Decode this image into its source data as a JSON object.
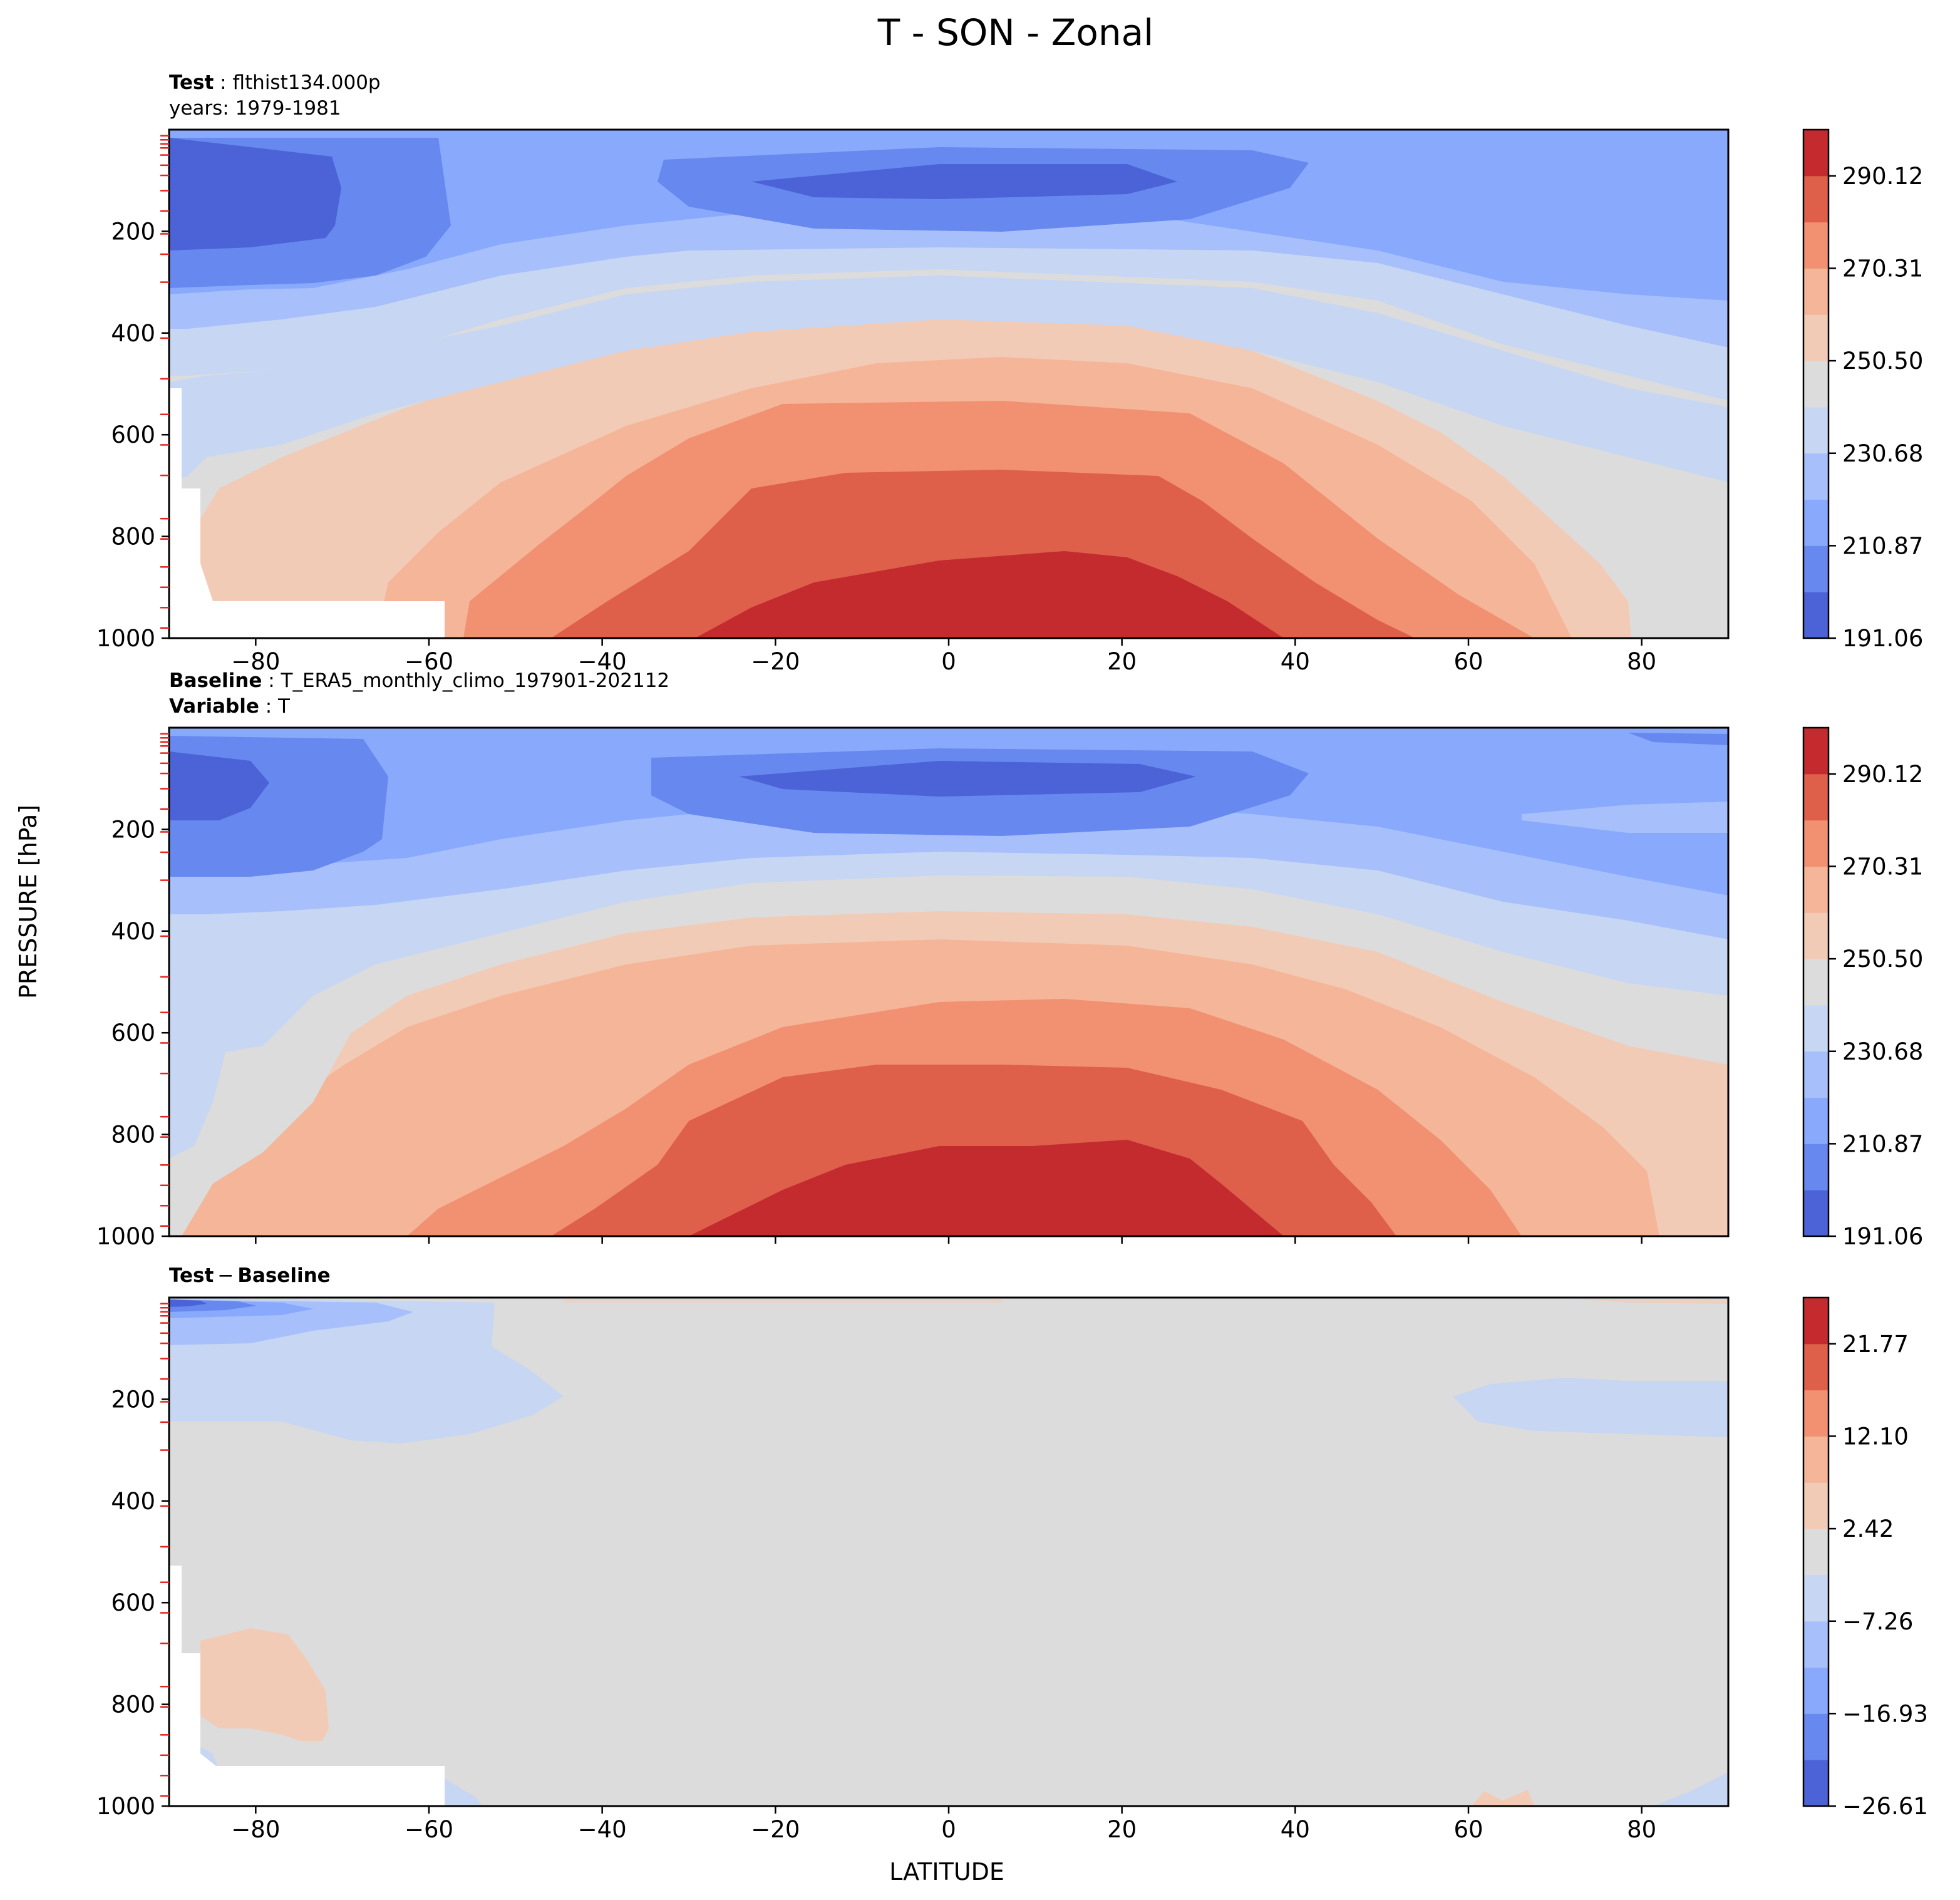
{
  "figure": {
    "title": "T - SON - Zonal",
    "ylabel": "PRESSURE [hPa]",
    "xlabel": "LATITUDE"
  },
  "panels": {
    "test": {
      "header_bold": "Test",
      "header_text": "flthist134.000p",
      "header_line2": "years: 1979-1981"
    },
    "baseline": {
      "header_bold": "Baseline",
      "header_text": "T_ERA5_monthly_climo_197901-202112",
      "header2_bold": "Variable",
      "header2_text": "T"
    },
    "diff": {
      "header_bold1": "Test",
      "header_minus": "−",
      "header_bold2": "Baseline"
    }
  },
  "chart_data": [
    {
      "type": "contourf",
      "panel": "test",
      "title": "Test : flthist134.000p",
      "subtitle": "years: 1979-1981",
      "x_ticks": [
        -80,
        -60,
        -40,
        -20,
        0,
        20,
        40,
        60,
        80
      ],
      "x_tick_labels": [
        "−80",
        "−60",
        "−40",
        "−20",
        "0",
        "20",
        "40",
        "60",
        "80"
      ],
      "y_ticks": [
        200,
        400,
        600,
        800,
        1000
      ],
      "y_tick_labels": [
        "200",
        "400",
        "600",
        "800",
        "1000"
      ],
      "xlim": [
        -90,
        90
      ],
      "ylim": [
        1000,
        0
      ],
      "colormap": "coolwarm",
      "colorbar_ticks": [
        "290.12",
        "270.31",
        "250.50",
        "230.68",
        "210.87",
        "191.06"
      ],
      "colorbar_range": [
        191.06,
        300.03
      ],
      "levels": 11
    },
    {
      "type": "contourf",
      "panel": "baseline",
      "title": "Baseline : T_ERA5_monthly_climo_197901-202112",
      "subtitle": "Variable : T",
      "x_ticks": [
        -80,
        -60,
        -40,
        -20,
        0,
        20,
        40,
        60,
        80
      ],
      "y_ticks": [
        200,
        400,
        600,
        800,
        1000
      ],
      "y_tick_labels": [
        "200",
        "400",
        "600",
        "800",
        "1000"
      ],
      "xlim": [
        -90,
        90
      ],
      "ylim": [
        1000,
        0
      ],
      "colormap": "coolwarm",
      "colorbar_ticks": [
        "290.12",
        "270.31",
        "250.50",
        "230.68",
        "210.87",
        "191.06"
      ],
      "colorbar_range": [
        191.06,
        300.03
      ],
      "levels": 11
    },
    {
      "type": "contourf",
      "panel": "diff",
      "title": "Test − Baseline",
      "x_ticks": [
        -80,
        -60,
        -40,
        -20,
        0,
        20,
        40,
        60,
        80
      ],
      "x_tick_labels": [
        "−80",
        "−60",
        "−40",
        "−20",
        "0",
        "20",
        "40",
        "60",
        "80"
      ],
      "y_ticks": [
        200,
        400,
        600,
        800,
        1000
      ],
      "y_tick_labels": [
        "200",
        "400",
        "600",
        "800",
        "1000"
      ],
      "xlim": [
        -90,
        90
      ],
      "ylim": [
        1000,
        0
      ],
      "colormap": "coolwarm",
      "colorbar_ticks": [
        "21.77",
        "12.10",
        "2.42",
        "−7.26",
        "−16.93",
        "−26.61"
      ],
      "colorbar_range": [
        -26.61,
        26.61
      ],
      "levels": 11
    }
  ]
}
